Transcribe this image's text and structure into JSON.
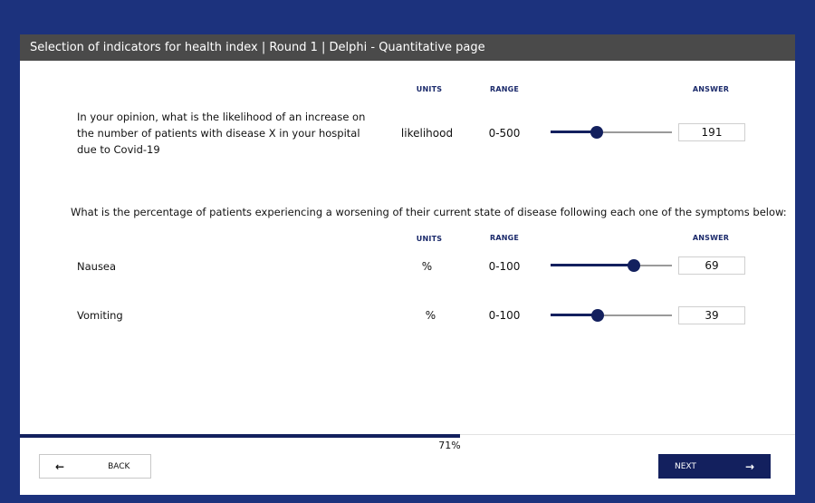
{
  "title": "Selection of indicators for health index | Round 1 | Delphi - Quantitative page",
  "headers": {
    "units": "UNITS",
    "range": "RANGE",
    "answer": "ANSWER"
  },
  "question1": {
    "text": "In your opinion, what is the likelihood of an increase on the number of patients with disease X in your hospital due to Covid-19",
    "units": "likelihood",
    "range": "0-500",
    "min": 0,
    "max": 500,
    "value": "191"
  },
  "section2": {
    "text": "What is the percentage of patients experiencing a worsening of their current state of disease following each one of the symptoms below:",
    "rows": [
      {
        "label": "Nausea",
        "units": "%",
        "range": "0-100",
        "min": 0,
        "max": 100,
        "value": "69"
      },
      {
        "label": "Vomiting",
        "units": "%",
        "range": "0-100",
        "min": 0,
        "max": 100,
        "value": "39"
      }
    ]
  },
  "progress": {
    "fraction": 0.71,
    "label": "71%"
  },
  "nav": {
    "back_label": "BACK",
    "next_label": "NEXT",
    "back_icon": "arrow-left-icon",
    "next_icon": "arrow-right-icon"
  },
  "colors": {
    "frame": "#1c327d",
    "accent": "#13205e",
    "titlebar": "#4a4a4a"
  }
}
